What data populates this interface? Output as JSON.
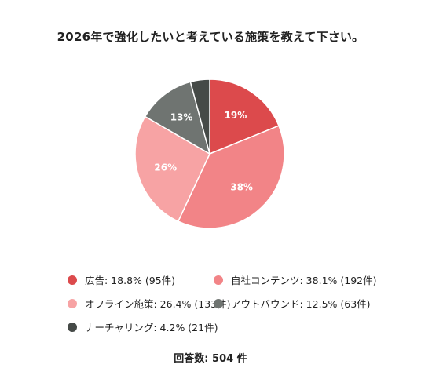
{
  "chart_data": {
    "type": "pie",
    "title": "2026年で強化したいと考えている施策を教えて下さい。",
    "slices": [
      {
        "name": "広告",
        "value": 95,
        "percent": 18.8,
        "label": "19%",
        "legend": "広告: 18.8% (95件)",
        "color": "#dc4a4c"
      },
      {
        "name": "自社コンテンツ",
        "value": 192,
        "percent": 38.1,
        "label": "38%",
        "legend": "自社コンテンツ: 38.1% (192件)",
        "color": "#f28487"
      },
      {
        "name": "オフライン施策",
        "value": 133,
        "percent": 26.4,
        "label": "26%",
        "legend": "オフライン施策: 26.4% (133件)",
        "color": "#f7a3a4"
      },
      {
        "name": "アウトバウンド",
        "value": 63,
        "percent": 12.5,
        "label": "13%",
        "legend": "アウトバウンド: 12.5% (63件)",
        "color": "#6f7471"
      },
      {
        "name": "ナーチャリング",
        "value": 21,
        "percent": 4.2,
        "label": "",
        "legend": "ナーチャリング: 4.2% (21件)",
        "color": "#454a47"
      }
    ],
    "total_label": "回答数: 504 件",
    "legend_placement": "bottom"
  }
}
